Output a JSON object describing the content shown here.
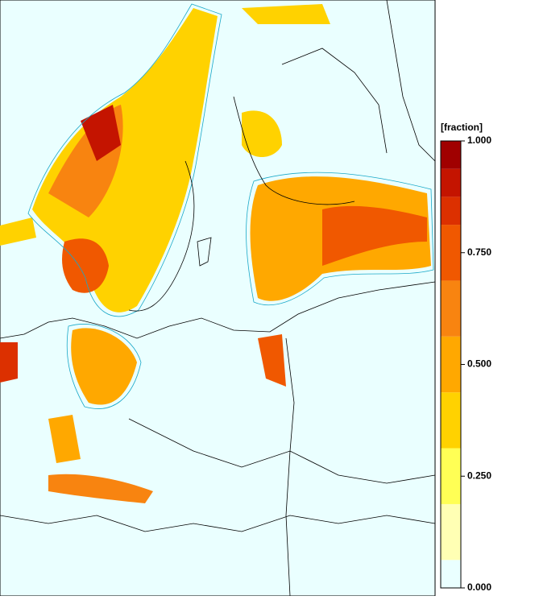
{
  "colorbar": {
    "label": "[fraction]",
    "lim": [
      0,
      1
    ],
    "levels": [
      0,
      0.0625,
      0.1875,
      0.3125,
      0.4375,
      0.5625,
      0.6875,
      0.8125,
      0.875,
      0.9375,
      1
    ],
    "colors": [
      "#eaffff",
      "#ffffb4",
      "#ffff55",
      "#ffd200",
      "#ffa800",
      "#f88410",
      "#f05800",
      "#dc3000",
      "#c41400",
      "#a00000"
    ],
    "ticks": [
      {
        "value": 1,
        "label": "1.000"
      },
      {
        "value": 0.75,
        "label": "0.750"
      },
      {
        "value": 0.5,
        "label": "0.500"
      },
      {
        "value": 0.25,
        "label": "0.250"
      },
      {
        "value": 0,
        "label": "0.000"
      }
    ]
  }
}
